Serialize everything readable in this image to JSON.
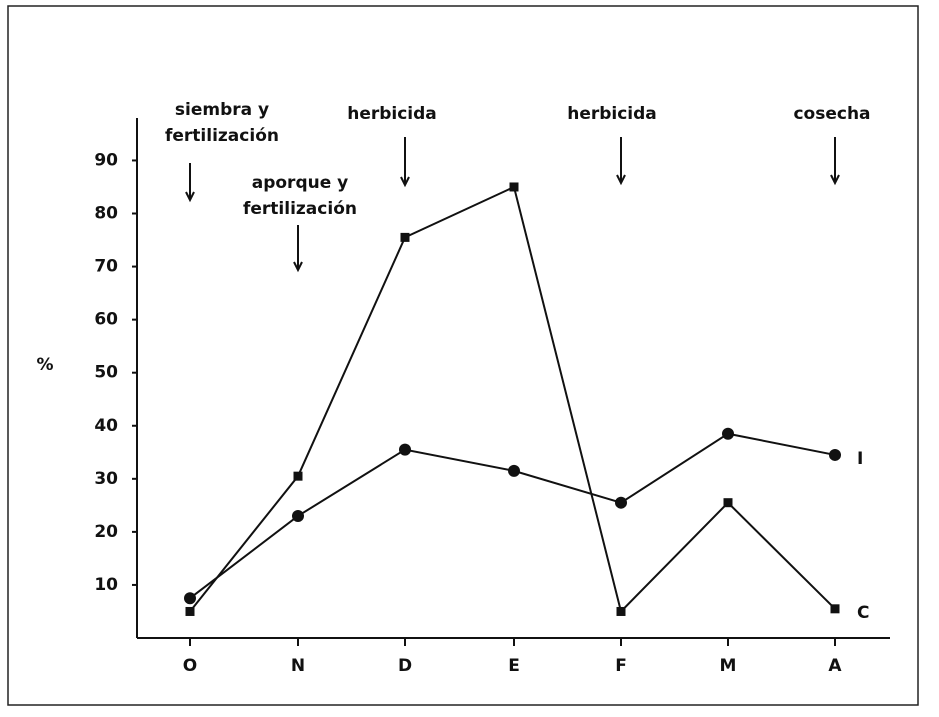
{
  "chart_data": {
    "type": "line",
    "y_label": "%",
    "categories": [
      "O",
      "N",
      "D",
      "E",
      "F",
      "M",
      "A"
    ],
    "series": [
      {
        "name": "I",
        "color": "#111111",
        "marker": "circle",
        "values": [
          7.5,
          23,
          35.5,
          31.5,
          25.5,
          38.5,
          34.5
        ]
      },
      {
        "name": "C",
        "color": "#111111",
        "marker": "square",
        "values": [
          5,
          30.5,
          75.5,
          85,
          5,
          25.5,
          5.5
        ]
      }
    ],
    "ylim": [
      0,
      98
    ],
    "yticks": [
      10,
      20,
      30,
      40,
      50,
      60,
      70,
      80,
      90
    ],
    "annotations": [
      {
        "lines": [
          "siembra y",
          "fertilización"
        ],
        "category": 0
      },
      {
        "lines": [
          "aporque y",
          "fertilización"
        ],
        "category": 1
      },
      {
        "lines": [
          "herbicida"
        ],
        "category": 2
      },
      {
        "lines": [
          "herbicida"
        ],
        "category": 4
      },
      {
        "lines": [
          "cosecha"
        ],
        "category": 6
      }
    ]
  }
}
